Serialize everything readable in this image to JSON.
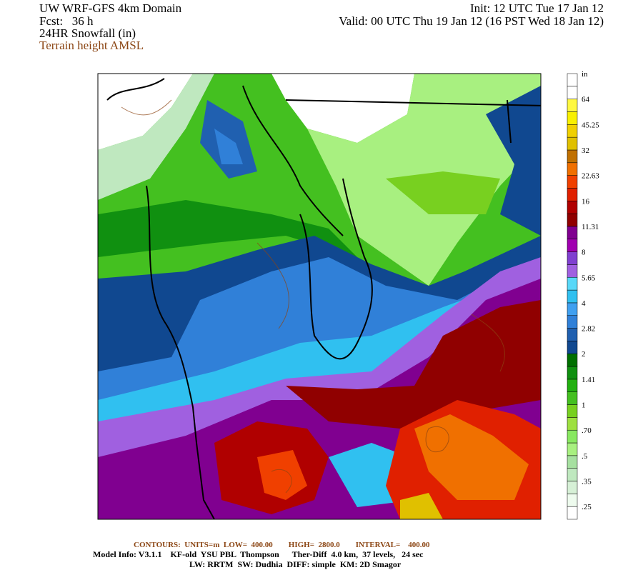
{
  "header": {
    "title": "UW WRF-GFS 4km Domain",
    "forecast": "Fcst:   36 h",
    "field": "24HR Snowfall (in)",
    "contour_field": "Terrain height AMSL",
    "init": "Init: 12 UTC Tue 17 Jan 12",
    "valid": "Valid: 00 UTC Thu 19 Jan 12 (16 PST Wed 18 Jan 12)"
  },
  "colorbar": {
    "unit": "in",
    "labels": [
      ".25",
      ".35",
      ".5",
      ".70",
      "1",
      "1.41",
      "2",
      "2.82",
      "4",
      "5.65",
      "8",
      "11.31",
      "16",
      "22.63",
      "32",
      "45.25",
      "64"
    ],
    "colors": [
      "#ffffff",
      "#eefbee",
      "#d6f0d6",
      "#bfe8bf",
      "#a6e0a0",
      "#a8f080",
      "#88e860",
      "#9ee040",
      "#78d020",
      "#44c020",
      "#22b010",
      "#109010",
      "#007000",
      "#104890",
      "#2060b0",
      "#3080d8",
      "#40a0f0",
      "#30c0f0",
      "#58d8f8",
      "#a060e0",
      "#8040d0",
      "#a000b0",
      "#800090",
      "#900000",
      "#b00000",
      "#e02000",
      "#f04000",
      "#f07000",
      "#c07000",
      "#e0c000",
      "#f0d000",
      "#f8f000",
      "#fff840",
      "#ffffff",
      "#ffffff"
    ]
  },
  "footer": {
    "contours": "CONTOURS:  UNITS=m  LOW=  400.00        HIGH=  2800.0        INTERVAL=    400.00",
    "model_info": "Model Info: V3.1.1    KF-old  YSU PBL  Thompson      Ther-Diff  4.0 km,  37 levels,   24 sec",
    "physics": "LW: RRTM  SW: Dudhia  DIFF: simple  KM: 2D Smagor"
  }
}
